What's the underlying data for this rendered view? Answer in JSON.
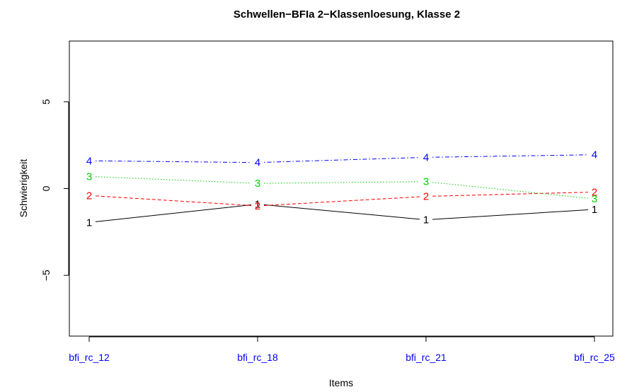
{
  "chart_data": {
    "type": "line",
    "title": "Schwellen−BFIa  2−Klassenloesung, Klasse 2",
    "xlabel": "Items",
    "ylabel": "Schwierigkeit",
    "categories": [
      "bfi_rc_12",
      "bfi_rc_18",
      "bfi_rc_21",
      "bfi_rc_25"
    ],
    "category_color": "#0000ff",
    "ylim": [
      -8.5,
      8.5
    ],
    "yticks": [
      -5,
      0,
      5
    ],
    "ytick_labels": [
      "−5",
      "0",
      "5"
    ],
    "grid": false,
    "series": [
      {
        "marker": "1",
        "color": "#000000",
        "dash": "solid",
        "values": [
          -1.95,
          -0.9,
          -1.8,
          -1.2
        ]
      },
      {
        "marker": "2",
        "color": "#ff0000",
        "dash": "dashed",
        "values": [
          -0.4,
          -1.0,
          -0.45,
          -0.2
        ]
      },
      {
        "marker": "3",
        "color": "#00cd00",
        "dash": "dotted",
        "values": [
          0.7,
          0.3,
          0.4,
          -0.6
        ]
      },
      {
        "marker": "4",
        "color": "#0000ff",
        "dash": "dotdash",
        "values": [
          1.6,
          1.5,
          1.8,
          1.95
        ]
      }
    ]
  }
}
